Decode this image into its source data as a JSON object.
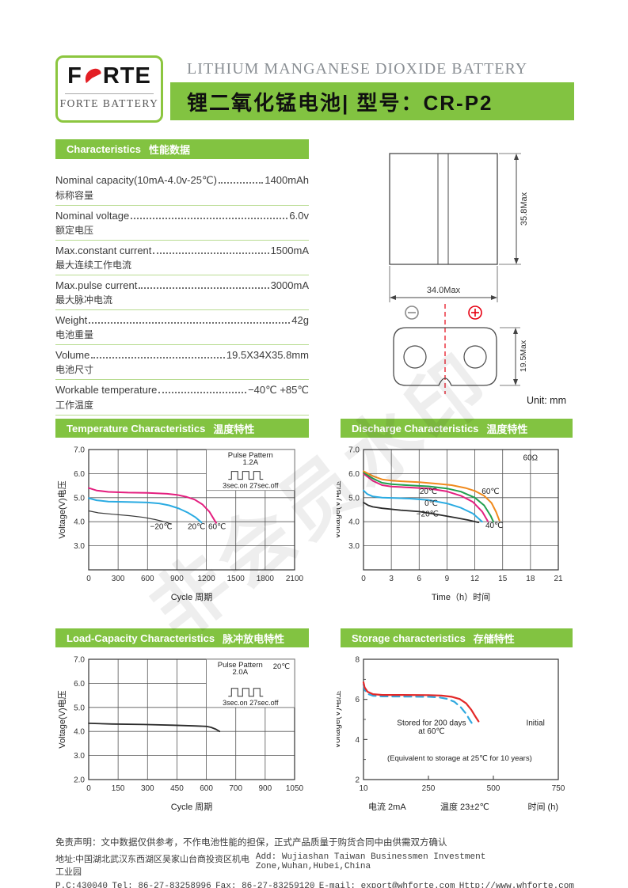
{
  "watermark": "非会员水印",
  "header": {
    "logo_part1": "F",
    "logo_part2": "RTE",
    "logo_sub": "FORTE BATTERY",
    "title_en": "LITHIUM MANGANESE DIOXIDE BATTERY",
    "title_zh": "锂二氧化锰电池|  型号：CR-P2"
  },
  "colors": {
    "green_bar": "#82c341",
    "green_border": "#8cc63f",
    "divider_green": "#b9dc92",
    "red": "#e31e24",
    "pink_curve": "#e41f7f",
    "cyan_curve": "#2aabe2",
    "orange_curve": "#f08a1d",
    "green_curve": "#21a04e"
  },
  "specs": {
    "header_en": "Characteristics",
    "header_zh": "性能数据",
    "items": [
      {
        "en": "Nominal capacity(10mA-4.0v-25℃)",
        "value": "1400mAh",
        "zh": "标称容量"
      },
      {
        "en": "Nominal voltage",
        "value": "6.0v",
        "zh": "额定电压"
      },
      {
        "en": "Max.constant current",
        "value": "1500mA",
        "zh": "最大连续工作电流"
      },
      {
        "en": "Max.pulse current",
        "value": "3000mA",
        "zh": "最大脉冲电流"
      },
      {
        "en": "Weight",
        "value": "42g",
        "zh": "电池重量"
      },
      {
        "en": "Volume",
        "value": "19.5X34X35.8mm",
        "zh": "电池尺寸"
      },
      {
        "en": "Workable temperature",
        "value": "−40℃  +85℃",
        "zh": "工作温度"
      }
    ]
  },
  "diagram": {
    "height_dim": "35.8Max",
    "width_dim": "34.0Max",
    "thickness_dim": "19.5Max",
    "unit_label": "Unit: mm"
  },
  "chart_data": [
    {
      "type": "line",
      "panel_title_en": "Temperature Characteristics",
      "panel_title_zh": "温度特性",
      "xlabel": "Cycle  周期",
      "ylabel": "Voltage(V)电压",
      "xticks": [
        0,
        300,
        600,
        900,
        1200,
        1500,
        1800,
        2100
      ],
      "xtick_labels": [
        "0",
        "300",
        "600",
        "900",
        "1200",
        "1500",
        "1800",
        "2100"
      ],
      "yticks": [
        3,
        4,
        5,
        6,
        7
      ],
      "ytick_labels": [
        "3.0",
        "4.0",
        "5.0",
        "6.0",
        "7.0"
      ],
      "ylim": [
        2,
        7
      ],
      "grid": true,
      "legend_position": "none",
      "series": [
        {
          "name": "−20℃",
          "color": "#3a3a3a",
          "width": 1.2,
          "points": [
            [
              0,
              4.45
            ],
            [
              100,
              4.37
            ],
            [
              250,
              4.31
            ],
            [
              420,
              4.25
            ],
            [
              560,
              4.18
            ],
            [
              680,
              4.09
            ],
            [
              790,
              3.98
            ],
            [
              835,
              3.9
            ]
          ]
        },
        {
          "name": "20℃",
          "color": "#2aabe2",
          "width": 2,
          "points": [
            [
              0,
              4.98
            ],
            [
              80,
              4.89
            ],
            [
              200,
              4.84
            ],
            [
              400,
              4.82
            ],
            [
              600,
              4.8
            ],
            [
              720,
              4.76
            ],
            [
              820,
              4.68
            ],
            [
              920,
              4.55
            ],
            [
              1010,
              4.38
            ],
            [
              1090,
              4.18
            ],
            [
              1150,
              3.97
            ]
          ]
        },
        {
          "name": "60℃",
          "color": "#e41f7f",
          "width": 2,
          "points": [
            [
              0,
              5.4
            ],
            [
              80,
              5.3
            ],
            [
              200,
              5.24
            ],
            [
              400,
              5.21
            ],
            [
              600,
              5.2
            ],
            [
              800,
              5.16
            ],
            [
              900,
              5.12
            ],
            [
              1000,
              5.03
            ],
            [
              1080,
              4.92
            ],
            [
              1160,
              4.72
            ],
            [
              1230,
              4.42
            ],
            [
              1285,
              4.05
            ],
            [
              1300,
              3.95
            ]
          ]
        }
      ],
      "labels": [
        {
          "text": "−20℃",
          "x": 740,
          "y": 3.7
        },
        {
          "text": "20℃",
          "x": 1100,
          "y": 3.7
        },
        {
          "text": "60℃",
          "x": 1310,
          "y": 3.7
        }
      ],
      "inset": {
        "x0": 1200,
        "x1": 2100,
        "y0": 5.3,
        "y1": 7.0,
        "line1": "Pulse  Pattern",
        "line2": "1.2A",
        "temp": "",
        "timing": "3sec.on  27sec.off"
      }
    },
    {
      "type": "line",
      "panel_title_en": "Discharge Characteristics",
      "panel_title_zh": "温度特性",
      "xlabel": "Time（h）时间",
      "ylabel": "Voltage(V)电压",
      "xticks": [
        0,
        3,
        6,
        9,
        12,
        15,
        18,
        21
      ],
      "xtick_labels": [
        "0",
        "3",
        "6",
        "9",
        "12",
        "15",
        "18",
        "21"
      ],
      "yticks": [
        3,
        4,
        5,
        6,
        7
      ],
      "ytick_labels": [
        "3.0",
        "4.0",
        "5.0",
        "6.0",
        "7.0"
      ],
      "ylim": [
        2,
        7
      ],
      "grid": true,
      "series": [
        {
          "name": "−20℃",
          "color": "#2b2b2b",
          "width": 1.8,
          "points": [
            [
              0,
              4.8
            ],
            [
              0.5,
              4.68
            ],
            [
              1,
              4.62
            ],
            [
              2,
              4.56
            ],
            [
              4,
              4.48
            ],
            [
              6,
              4.42
            ],
            [
              8,
              4.3
            ],
            [
              10,
              4.16
            ],
            [
              11.3,
              4.07
            ],
            [
              12.4,
              3.97
            ]
          ]
        },
        {
          "name": "0℃",
          "color": "#2aabe2",
          "width": 2,
          "points": [
            [
              0,
              5.3
            ],
            [
              0.4,
              5.15
            ],
            [
              1,
              5.05
            ],
            [
              2,
              5.0
            ],
            [
              3,
              4.99
            ],
            [
              5,
              4.96
            ],
            [
              7,
              4.9
            ],
            [
              9,
              4.76
            ],
            [
              10.5,
              4.58
            ],
            [
              11.8,
              4.34
            ],
            [
              12.8,
              4.0
            ]
          ]
        },
        {
          "name": "20℃",
          "color": "#e41f7f",
          "width": 2,
          "points": [
            [
              0,
              6.0
            ],
            [
              0.5,
              5.85
            ],
            [
              1,
              5.7
            ],
            [
              2,
              5.52
            ],
            [
              3,
              5.46
            ],
            [
              5,
              5.42
            ],
            [
              7,
              5.38
            ],
            [
              9,
              5.26
            ],
            [
              10.5,
              5.08
            ],
            [
              11.8,
              4.82
            ],
            [
              12.8,
              4.42
            ],
            [
              13.4,
              4.02
            ]
          ]
        },
        {
          "name": "40℃",
          "color": "#21a04e",
          "width": 2,
          "points": [
            [
              0,
              6.05
            ],
            [
              0.5,
              5.92
            ],
            [
              1,
              5.8
            ],
            [
              2,
              5.62
            ],
            [
              3,
              5.56
            ],
            [
              5,
              5.51
            ],
            [
              7,
              5.47
            ],
            [
              9,
              5.38
            ],
            [
              10.5,
              5.25
            ],
            [
              12,
              5.0
            ],
            [
              13,
              4.68
            ],
            [
              13.7,
              4.25
            ],
            [
              14.0,
              4.0
            ]
          ]
        },
        {
          "name": "60℃",
          "color": "#f08a1d",
          "width": 2,
          "points": [
            [
              0,
              6.1
            ],
            [
              0.4,
              6.02
            ],
            [
              1,
              5.9
            ],
            [
              2,
              5.76
            ],
            [
              3,
              5.71
            ],
            [
              4.5,
              5.67
            ],
            [
              6,
              5.64
            ],
            [
              8,
              5.58
            ],
            [
              9.5,
              5.52
            ],
            [
              11,
              5.4
            ],
            [
              12,
              5.28
            ],
            [
              13,
              5.08
            ],
            [
              13.8,
              4.78
            ],
            [
              14.3,
              4.4
            ],
            [
              14.65,
              4.05
            ]
          ]
        }
      ],
      "labels": [
        {
          "text": "20℃",
          "x": 7.0,
          "y": 5.15
        },
        {
          "text": "0℃",
          "x": 7.3,
          "y": 4.67
        },
        {
          "text": "−20℃",
          "x": 6.9,
          "y": 4.22
        },
        {
          "text": "60℃",
          "x": 13.7,
          "y": 5.15
        },
        {
          "text": "40℃",
          "x": 14.1,
          "y": 3.75
        }
      ],
      "annotations": [
        {
          "text": "60Ω",
          "x": 18.0,
          "y": 6.55
        }
      ]
    },
    {
      "type": "line",
      "panel_title_en": "Load-Capacity Characteristics",
      "panel_title_zh": "脉冲放电特性",
      "xlabel": "Cycle  周期",
      "ylabel": "Voltage(V)电压",
      "xticks": [
        0,
        150,
        300,
        450,
        600,
        700,
        900,
        1050
      ],
      "xtick_labels": [
        "0",
        "150",
        "300",
        "450",
        "600",
        "700",
        "900",
        "1050"
      ],
      "yticks": [
        2,
        3,
        4,
        5,
        6,
        7
      ],
      "ytick_labels": [
        "2.0",
        "3.0",
        "4.0",
        "5.0",
        "6.0",
        "7.0"
      ],
      "ylim": [
        2,
        7
      ],
      "grid": true,
      "series": [
        {
          "name": "2.0A pulse 20℃",
          "color": "#2b2b2b",
          "width": 1.8,
          "points": [
            [
              0,
              4.34
            ],
            [
              120,
              4.31
            ],
            [
              280,
              4.29
            ],
            [
              430,
              4.26
            ],
            [
              540,
              4.23
            ],
            [
              600,
              4.21
            ],
            [
              616,
              4.17
            ],
            [
              633,
              4.09
            ],
            [
              645,
              4.0
            ]
          ]
        }
      ],
      "labels": [],
      "inset": {
        "x0": 600,
        "x1": 1050,
        "y0": 5.0,
        "y1": 7.0,
        "line1": "Pulse  Pattern",
        "line2": "2.0A",
        "temp": "20℃",
        "timing": "3sec.on  27sec.off"
      }
    },
    {
      "type": "line",
      "panel_title_en": "Storage characteristics",
      "panel_title_zh": "存储特性",
      "ylabel": "Voltage(V)电压",
      "xticks": [
        10,
        250,
        500,
        750
      ],
      "xtick_labels": [
        "10",
        "250",
        "500",
        "750"
      ],
      "yticks": [
        2,
        4,
        6,
        8
      ],
      "ytick_labels": [
        "2",
        "4",
        "6",
        "8"
      ],
      "yminor": [
        3,
        5,
        7
      ],
      "ylim": [
        2,
        8
      ],
      "grid": false,
      "series": [
        {
          "name": "Stored for 200 days at 60℃",
          "color": "#2fa8df",
          "width": 2.2,
          "dash": "9,6",
          "points": [
            [
              10,
              6.75
            ],
            [
              14,
              6.48
            ],
            [
              25,
              6.28
            ],
            [
              45,
              6.18
            ],
            [
              80,
              6.15
            ],
            [
              150,
              6.14
            ],
            [
              250,
              6.13
            ],
            [
              290,
              6.1
            ],
            [
              320,
              6.03
            ],
            [
              350,
              5.88
            ],
            [
              375,
              5.6
            ],
            [
              395,
              5.28
            ],
            [
              410,
              4.95
            ],
            [
              418,
              4.8
            ]
          ]
        },
        {
          "name": "Initial",
          "color": "#e32828",
          "width": 2.2,
          "points": [
            [
              10,
              6.85
            ],
            [
              14,
              6.6
            ],
            [
              25,
              6.38
            ],
            [
              45,
              6.26
            ],
            [
              80,
              6.22
            ],
            [
              150,
              6.22
            ],
            [
              250,
              6.21
            ],
            [
              300,
              6.19
            ],
            [
              340,
              6.13
            ],
            [
              370,
              6.02
            ],
            [
              395,
              5.8
            ],
            [
              415,
              5.48
            ],
            [
              432,
              5.12
            ],
            [
              443,
              4.9
            ]
          ]
        }
      ],
      "labels": [
        {
          "text": "Stored for 200 days",
          "x": 262,
          "y": 4.7
        },
        {
          "text": "at 60℃",
          "x": 262,
          "y": 4.28
        },
        {
          "text": "Initial",
          "x": 662,
          "y": 4.7
        },
        {
          "text": "(Equivalent to storage at 25℃ for 10 years)",
          "x": 370,
          "y": 2.95,
          "fs": 9.5
        }
      ],
      "xnotes": [
        "电流  2mA",
        "温度  23±2℃",
        "时间 (h)"
      ]
    }
  ],
  "footer": {
    "disclaimer": "免责声明：文中数据仅供参考，不作电池性能的担保，正式产品质量于购货合同中由供需双方确认",
    "address_zh": "地址:中国湖北武汉东西湖区吴家山台商投资区机电工业园",
    "address_en": "Add: Wujiashan Taiwan Businessmen Investment Zone,Wuhan,Hubei,China",
    "pc": "P.C:430040",
    "tel": "Tel: 86-27-83258996",
    "fax": "Fax: 86-27-83259120",
    "email": "E-mail: export@whforte.com",
    "web": "Http://www.whforte.com"
  }
}
